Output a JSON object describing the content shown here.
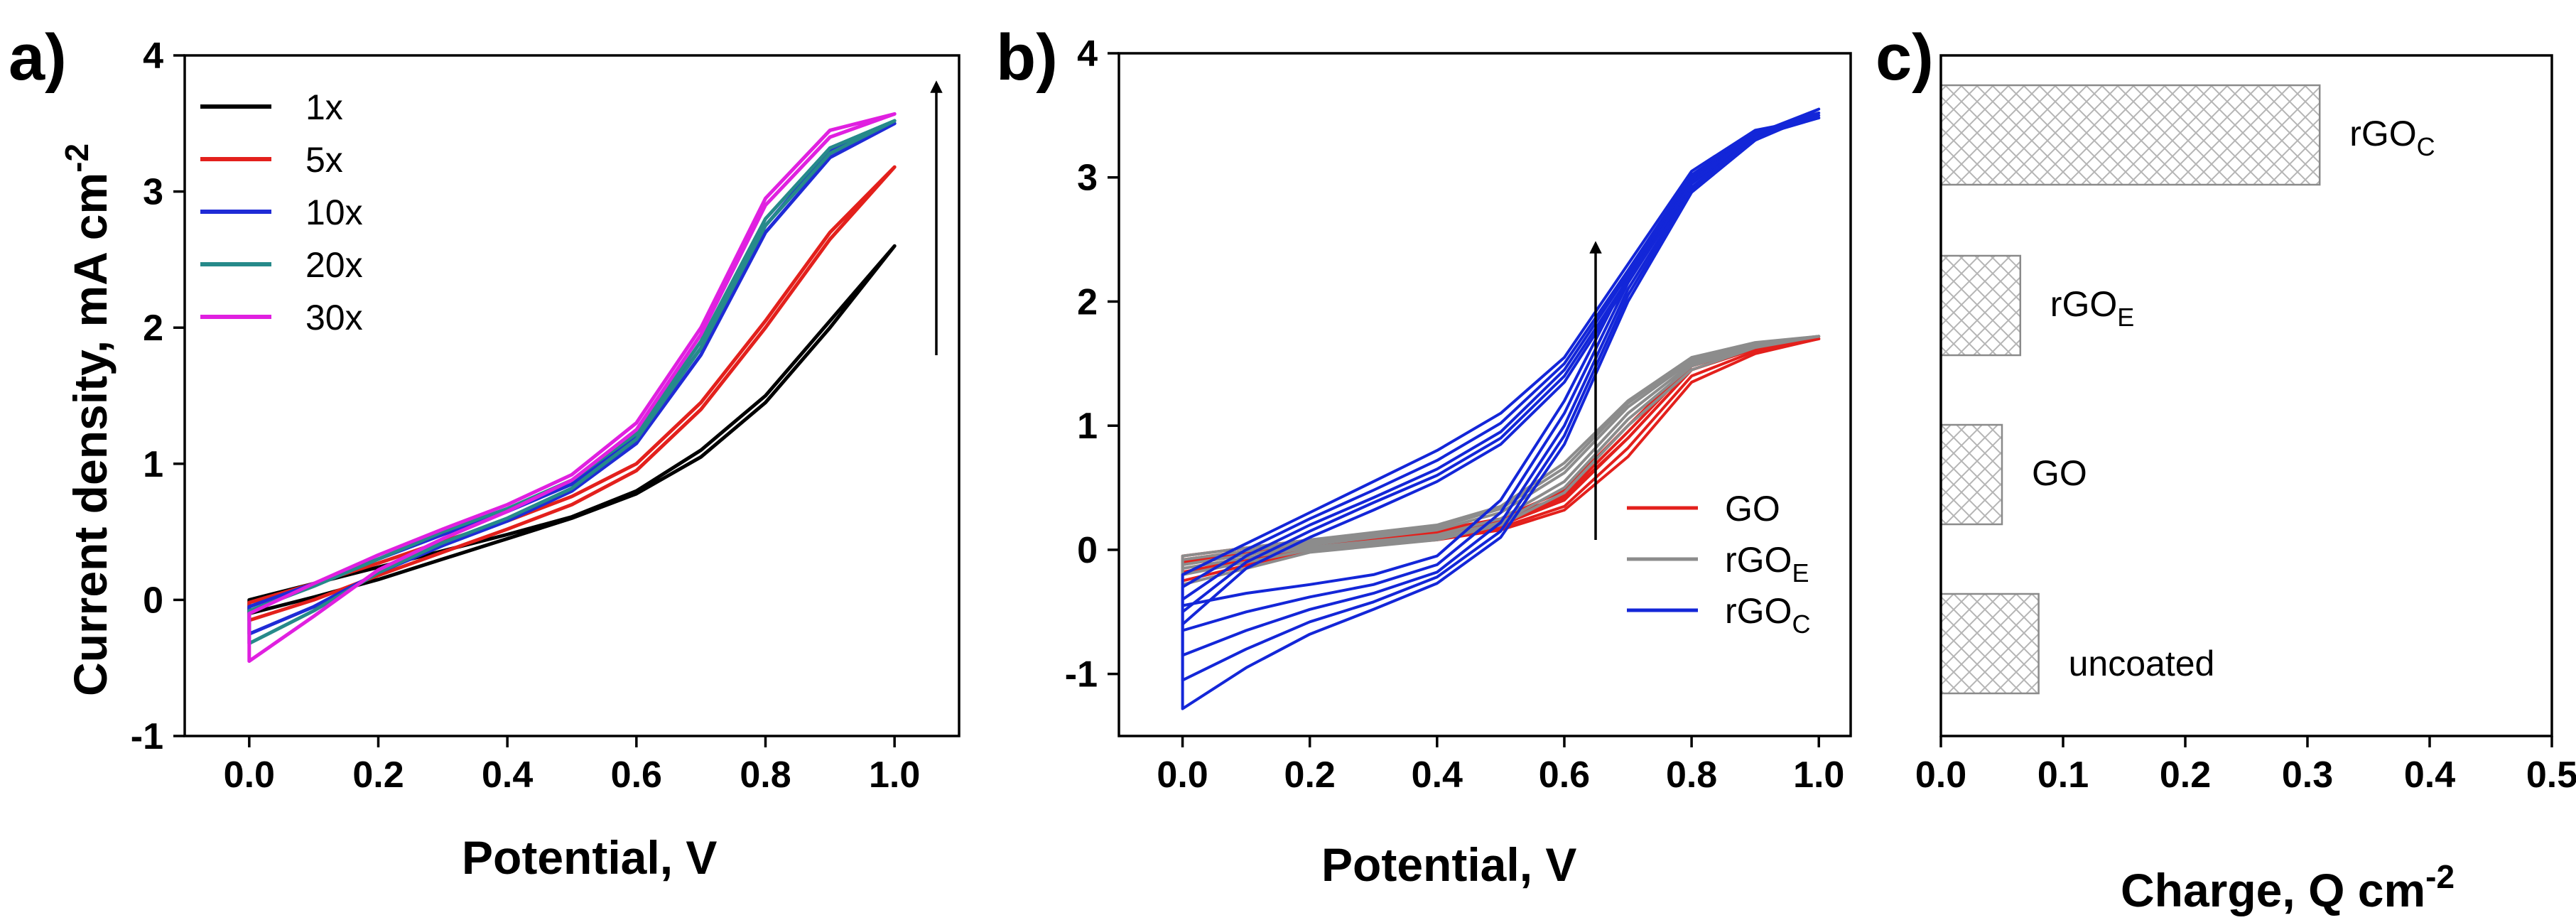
{
  "panels": {
    "a": {
      "label": "a)"
    },
    "b": {
      "label": "b)"
    },
    "c": {
      "label": "c)"
    }
  },
  "colors": {
    "1x": "#000000",
    "5x": "#e3201c",
    "10x": "#1f2bd6",
    "20x": "#268a8a",
    "30x": "#e020e0",
    "GO": "#e3201c",
    "rGOE": "#8c8c8c",
    "rGOC": "#1326d8",
    "bar_edge": "#8a8a8a"
  },
  "chart_data": [
    {
      "type": "line",
      "title": "",
      "xlabel": "Potential, V",
      "ylabel_main": "Current density, mA cm",
      "ylabel_sup": "-2",
      "xlim": [
        -0.1,
        1.1
      ],
      "ylim": [
        -1,
        4
      ],
      "xticks": [
        "0.0",
        "0.2",
        "0.4",
        "0.6",
        "0.8",
        "1.0"
      ],
      "yticks": [
        "-1",
        "0",
        "1",
        "2",
        "3",
        "4"
      ],
      "legend_position": "top-left",
      "annotation": "upward arrow indicating increasing number of cycles",
      "series": [
        {
          "name": "1x",
          "color_key": "1x",
          "x": [
            0.0,
            0.1,
            0.2,
            0.3,
            0.4,
            0.5,
            0.6,
            0.7,
            0.8,
            0.9,
            1.0
          ],
          "y_forward": [
            -0.1,
            0.02,
            0.15,
            0.3,
            0.45,
            0.6,
            0.78,
            1.05,
            1.45,
            2.0,
            2.6
          ],
          "y_reverse": [
            0.0,
            0.12,
            0.24,
            0.36,
            0.48,
            0.61,
            0.8,
            1.1,
            1.5,
            2.05,
            2.6
          ]
        },
        {
          "name": "5x",
          "color_key": "5x",
          "x": [
            0.0,
            0.1,
            0.2,
            0.3,
            0.4,
            0.5,
            0.6,
            0.7,
            0.8,
            0.9,
            1.0
          ],
          "y_forward": [
            -0.15,
            0.0,
            0.18,
            0.35,
            0.52,
            0.7,
            0.95,
            1.4,
            2.0,
            2.65,
            3.18
          ],
          "y_reverse": [
            -0.02,
            0.12,
            0.27,
            0.43,
            0.58,
            0.76,
            1.0,
            1.45,
            2.05,
            2.7,
            3.18
          ]
        },
        {
          "name": "10x",
          "color_key": "10x",
          "x": [
            0.0,
            0.1,
            0.2,
            0.3,
            0.4,
            0.5,
            0.6,
            0.7,
            0.8,
            0.9,
            1.0
          ],
          "y_forward": [
            -0.25,
            -0.05,
            0.2,
            0.4,
            0.58,
            0.8,
            1.15,
            1.8,
            2.7,
            3.25,
            3.5
          ],
          "y_reverse": [
            -0.05,
            0.12,
            0.3,
            0.48,
            0.65,
            0.85,
            1.2,
            1.85,
            2.75,
            3.3,
            3.5
          ]
        },
        {
          "name": "20x",
          "color_key": "20x",
          "x": [
            0.0,
            0.1,
            0.2,
            0.3,
            0.4,
            0.5,
            0.6,
            0.7,
            0.8,
            0.9,
            1.0
          ],
          "y_forward": [
            -0.32,
            -0.08,
            0.2,
            0.42,
            0.6,
            0.82,
            1.18,
            1.85,
            2.75,
            3.28,
            3.52
          ],
          "y_reverse": [
            -0.08,
            0.1,
            0.3,
            0.5,
            0.67,
            0.88,
            1.22,
            1.9,
            2.8,
            3.32,
            3.52
          ]
        },
        {
          "name": "30x",
          "color_key": "30x",
          "x": [
            0.0,
            0.1,
            0.2,
            0.3,
            0.4,
            0.5,
            0.6,
            0.7,
            0.8,
            0.9,
            1.0
          ],
          "y_forward": [
            -0.45,
            -0.12,
            0.22,
            0.45,
            0.65,
            0.88,
            1.25,
            1.95,
            2.9,
            3.4,
            3.57
          ],
          "y_reverse": [
            -0.1,
            0.12,
            0.33,
            0.52,
            0.7,
            0.92,
            1.3,
            2.0,
            2.95,
            3.45,
            3.57
          ]
        }
      ]
    },
    {
      "type": "line",
      "title": "",
      "xlabel": "Potential, V",
      "xlim": [
        -0.1,
        1.05
      ],
      "ylim": [
        -1.5,
        4
      ],
      "xticks": [
        "0.0",
        "0.2",
        "0.4",
        "0.6",
        "0.8",
        "1.0"
      ],
      "yticks": [
        "-1",
        "0",
        "1",
        "2",
        "3",
        "4"
      ],
      "legend_position": "bottom-right",
      "annotation": "upward arrow indicating increasing number of cycles",
      "series": [
        {
          "name": "GO",
          "base": "GO",
          "sub": "",
          "color_key": "GO",
          "cycles": [
            {
              "x": [
                0.0,
                0.2,
                0.4,
                0.5,
                0.6,
                0.7,
                0.8,
                0.9,
                1.0
              ],
              "y_forward": [
                -0.1,
                0.05,
                0.12,
                0.2,
                0.4,
                0.9,
                1.45,
                1.62,
                1.7
              ],
              "y_reverse": [
                -0.05,
                0.08,
                0.16,
                0.25,
                0.48,
                1.0,
                1.5,
                1.64,
                1.7
              ]
            },
            {
              "x": [
                0.0,
                0.2,
                0.4,
                0.5,
                0.6,
                0.7,
                0.8,
                0.9,
                1.0
              ],
              "y_forward": [
                -0.18,
                0.02,
                0.1,
                0.18,
                0.35,
                0.82,
                1.4,
                1.6,
                1.7
              ],
              "y_reverse": [
                -0.08,
                0.06,
                0.14,
                0.24,
                0.44,
                0.95,
                1.48,
                1.63,
                1.7
              ]
            },
            {
              "x": [
                0.0,
                0.2,
                0.4,
                0.5,
                0.6,
                0.7,
                0.8,
                0.9,
                1.0
              ],
              "y_forward": [
                -0.25,
                0.0,
                0.08,
                0.16,
                0.32,
                0.75,
                1.35,
                1.58,
                1.7
              ],
              "y_reverse": [
                -0.12,
                0.04,
                0.13,
                0.22,
                0.42,
                0.9,
                1.45,
                1.62,
                1.7
              ]
            }
          ]
        },
        {
          "name": "rGOE",
          "base": "rGO",
          "sub": "E",
          "color_key": "rGOE",
          "cycles": [
            {
              "x": [
                0.0,
                0.2,
                0.4,
                0.5,
                0.6,
                0.7,
                0.8,
                0.9,
                1.0
              ],
              "y_forward": [
                -0.15,
                0.02,
                0.12,
                0.25,
                0.55,
                1.1,
                1.5,
                1.65,
                1.72
              ],
              "y_reverse": [
                -0.05,
                0.08,
                0.2,
                0.35,
                0.7,
                1.2,
                1.55,
                1.67,
                1.72
              ]
            },
            {
              "x": [
                0.0,
                0.2,
                0.4,
                0.5,
                0.6,
                0.7,
                0.8,
                0.9,
                1.0
              ],
              "y_forward": [
                -0.2,
                0.0,
                0.1,
                0.22,
                0.5,
                1.05,
                1.48,
                1.64,
                1.72
              ],
              "y_reverse": [
                -0.08,
                0.06,
                0.18,
                0.33,
                0.66,
                1.18,
                1.54,
                1.66,
                1.72
              ]
            },
            {
              "x": [
                0.0,
                0.2,
                0.4,
                0.5,
                0.6,
                0.7,
                0.8,
                0.9,
                1.0
              ],
              "y_forward": [
                -0.28,
                -0.02,
                0.08,
                0.2,
                0.46,
                1.0,
                1.45,
                1.63,
                1.72
              ],
              "y_reverse": [
                -0.12,
                0.04,
                0.16,
                0.3,
                0.62,
                1.15,
                1.52,
                1.66,
                1.72
              ]
            }
          ]
        },
        {
          "name": "rGOC",
          "base": "rGO",
          "sub": "C",
          "color_key": "rGOC",
          "cycles": [
            {
              "x": [
                0.0,
                0.1,
                0.2,
                0.3,
                0.4,
                0.5,
                0.6,
                0.7,
                0.8,
                0.9,
                1.0
              ],
              "y_forward": [
                -0.45,
                -0.35,
                -0.28,
                -0.2,
                -0.05,
                0.4,
                1.2,
                2.2,
                3.0,
                3.35,
                3.48
              ],
              "y_reverse": [
                -0.2,
                0.05,
                0.3,
                0.55,
                0.8,
                1.1,
                1.55,
                2.3,
                3.05,
                3.38,
                3.48
              ]
            },
            {
              "x": [
                0.0,
                0.1,
                0.2,
                0.3,
                0.4,
                0.5,
                0.6,
                0.7,
                0.8,
                0.9,
                1.0
              ],
              "y_forward": [
                -0.65,
                -0.5,
                -0.38,
                -0.28,
                -0.12,
                0.3,
                1.1,
                2.15,
                2.95,
                3.33,
                3.48
              ],
              "y_reverse": [
                -0.3,
                0.0,
                0.25,
                0.48,
                0.72,
                1.02,
                1.5,
                2.25,
                3.02,
                3.37,
                3.48
              ]
            },
            {
              "x": [
                0.0,
                0.1,
                0.2,
                0.3,
                0.4,
                0.5,
                0.6,
                0.7,
                0.8,
                0.9,
                1.0
              ],
              "y_forward": [
                -0.85,
                -0.65,
                -0.48,
                -0.35,
                -0.18,
                0.22,
                1.0,
                2.1,
                2.92,
                3.32,
                3.5
              ],
              "y_reverse": [
                -0.4,
                -0.05,
                0.2,
                0.42,
                0.65,
                0.95,
                1.45,
                2.22,
                3.0,
                3.36,
                3.5
              ]
            },
            {
              "x": [
                0.0,
                0.1,
                0.2,
                0.3,
                0.4,
                0.5,
                0.6,
                0.7,
                0.8,
                0.9,
                1.0
              ],
              "y_forward": [
                -1.05,
                -0.8,
                -0.58,
                -0.42,
                -0.22,
                0.15,
                0.92,
                2.05,
                2.9,
                3.3,
                3.52
              ],
              "y_reverse": [
                -0.5,
                -0.1,
                0.15,
                0.38,
                0.6,
                0.9,
                1.4,
                2.18,
                2.98,
                3.35,
                3.52
              ]
            },
            {
              "x": [
                0.0,
                0.1,
                0.2,
                0.3,
                0.4,
                0.5,
                0.6,
                0.7,
                0.8,
                0.9,
                1.0
              ],
              "y_forward": [
                -1.28,
                -0.95,
                -0.68,
                -0.48,
                -0.27,
                0.1,
                0.85,
                2.0,
                2.88,
                3.3,
                3.55
              ],
              "y_reverse": [
                -0.6,
                -0.15,
                0.1,
                0.32,
                0.55,
                0.85,
                1.35,
                2.15,
                2.96,
                3.35,
                3.55
              ]
            }
          ]
        }
      ]
    },
    {
      "type": "bar",
      "orientation": "horizontal",
      "title": "",
      "xlabel_main": "Charge, Q cm",
      "xlabel_sup": "-2",
      "xlim": [
        0,
        0.5
      ],
      "xticks": [
        "0.0",
        "0.1",
        "0.2",
        "0.3",
        "0.4",
        "0.5"
      ],
      "fill_pattern": "crosshatch",
      "bars": [
        {
          "label": "rGOC",
          "base": "rGO",
          "sub": "C",
          "value": 0.31
        },
        {
          "label": "rGOE",
          "base": "rGO",
          "sub": "E",
          "value": 0.065
        },
        {
          "label": "GO",
          "base": "GO",
          "sub": "",
          "value": 0.05
        },
        {
          "label": "uncoated",
          "base": "uncoated",
          "sub": "",
          "value": 0.08
        }
      ]
    }
  ]
}
